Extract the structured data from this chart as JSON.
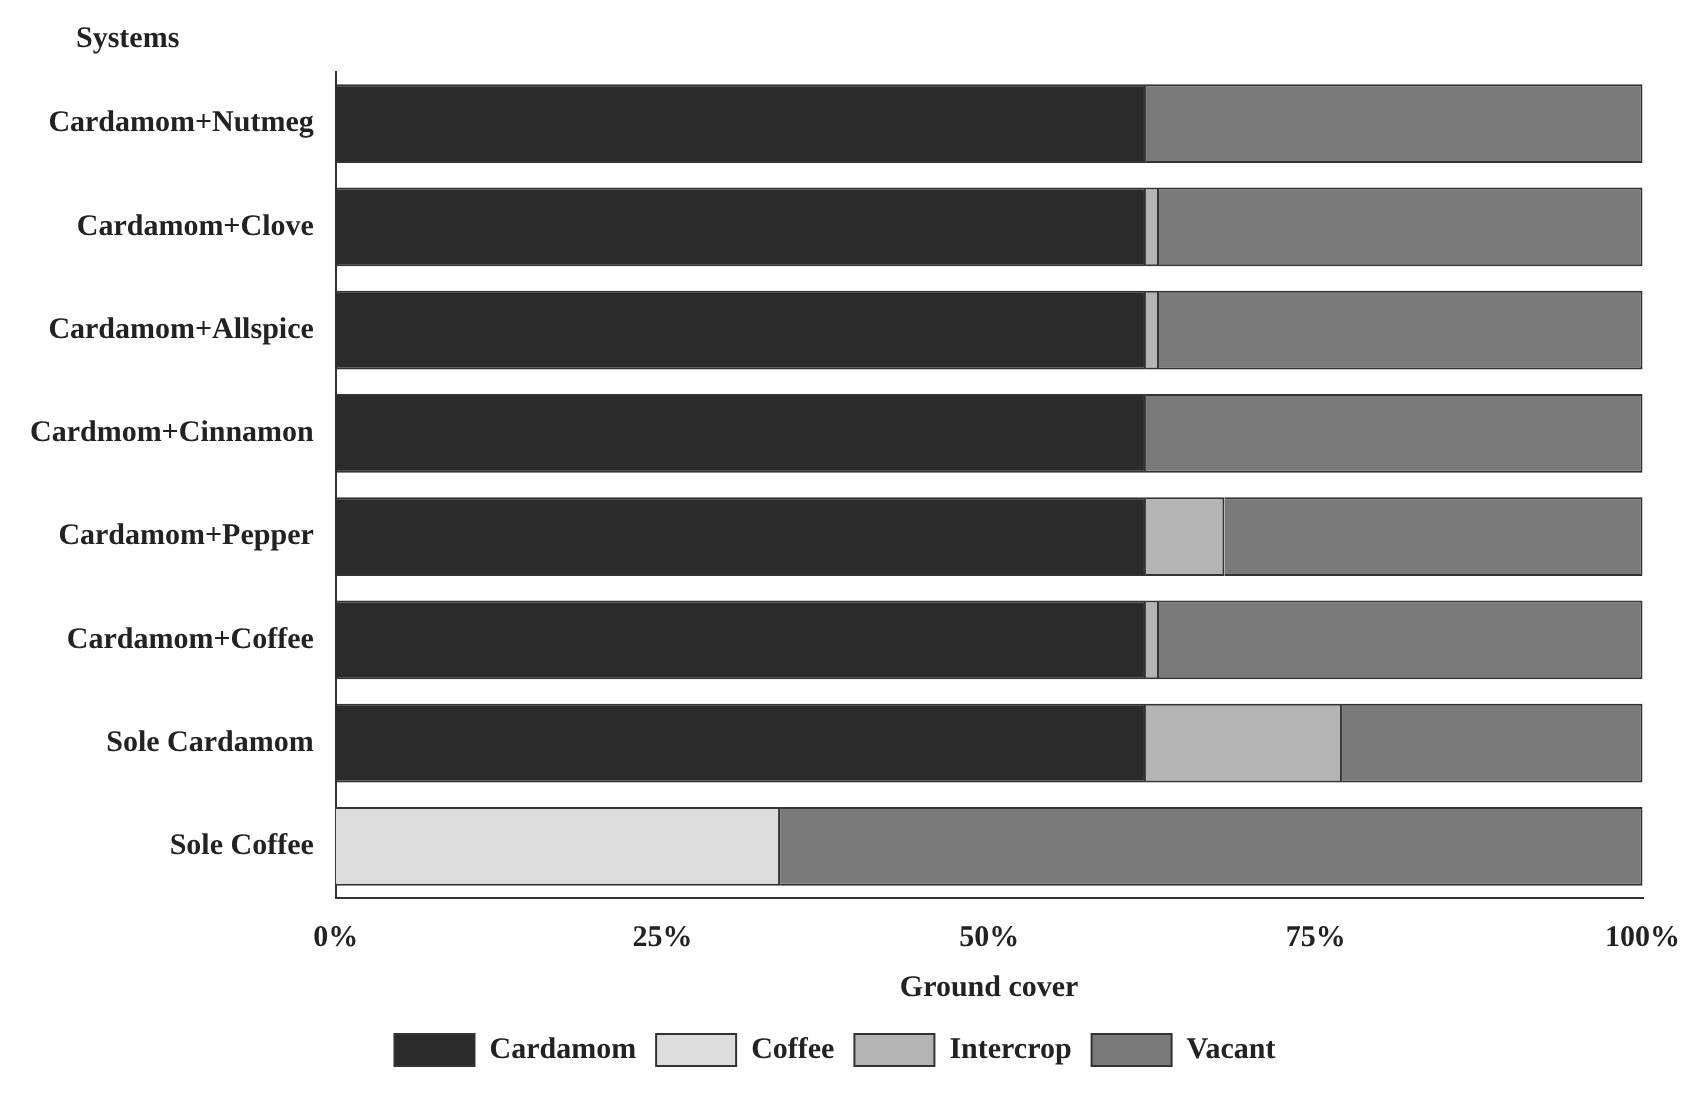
{
  "chart_data": {
    "type": "bar",
    "orientation": "horizontal",
    "stacked": true,
    "xlabel": "Ground cover",
    "ylabel": "Systems",
    "categories": [
      "Cardamom+Nutmeg",
      "Cardamom+Clove",
      "Cardamom+Allspice",
      "Cardmom+Cinnamon",
      "Cardamom+Pepper",
      "Cardamom+Coffee",
      "Sole Cardamom",
      "Sole Coffee"
    ],
    "series": [
      {
        "name": "Cardamom",
        "color": "#2b2b2b",
        "values": [
          62,
          62,
          62,
          62,
          62,
          62,
          62,
          0
        ]
      },
      {
        "name": "Coffee",
        "color": "#dcdcdc",
        "values": [
          0,
          0,
          0,
          0,
          0,
          0,
          0,
          34
        ]
      },
      {
        "name": "Intercrop",
        "color": "#b4b4b4",
        "values": [
          0,
          1,
          1,
          0,
          6,
          1,
          15,
          0
        ]
      },
      {
        "name": "Vacant",
        "color": "#7a7a7a",
        "values": [
          38,
          37,
          37,
          38,
          32,
          37,
          23,
          66
        ]
      }
    ],
    "xlim": [
      0,
      100
    ],
    "xticks": [
      {
        "value": 0,
        "label": "0%"
      },
      {
        "value": 25,
        "label": "25%"
      },
      {
        "value": 50,
        "label": "50%"
      },
      {
        "value": 75,
        "label": "75%"
      },
      {
        "value": 100,
        "label": "100%"
      }
    ],
    "grid": false,
    "legend": "bottom"
  }
}
